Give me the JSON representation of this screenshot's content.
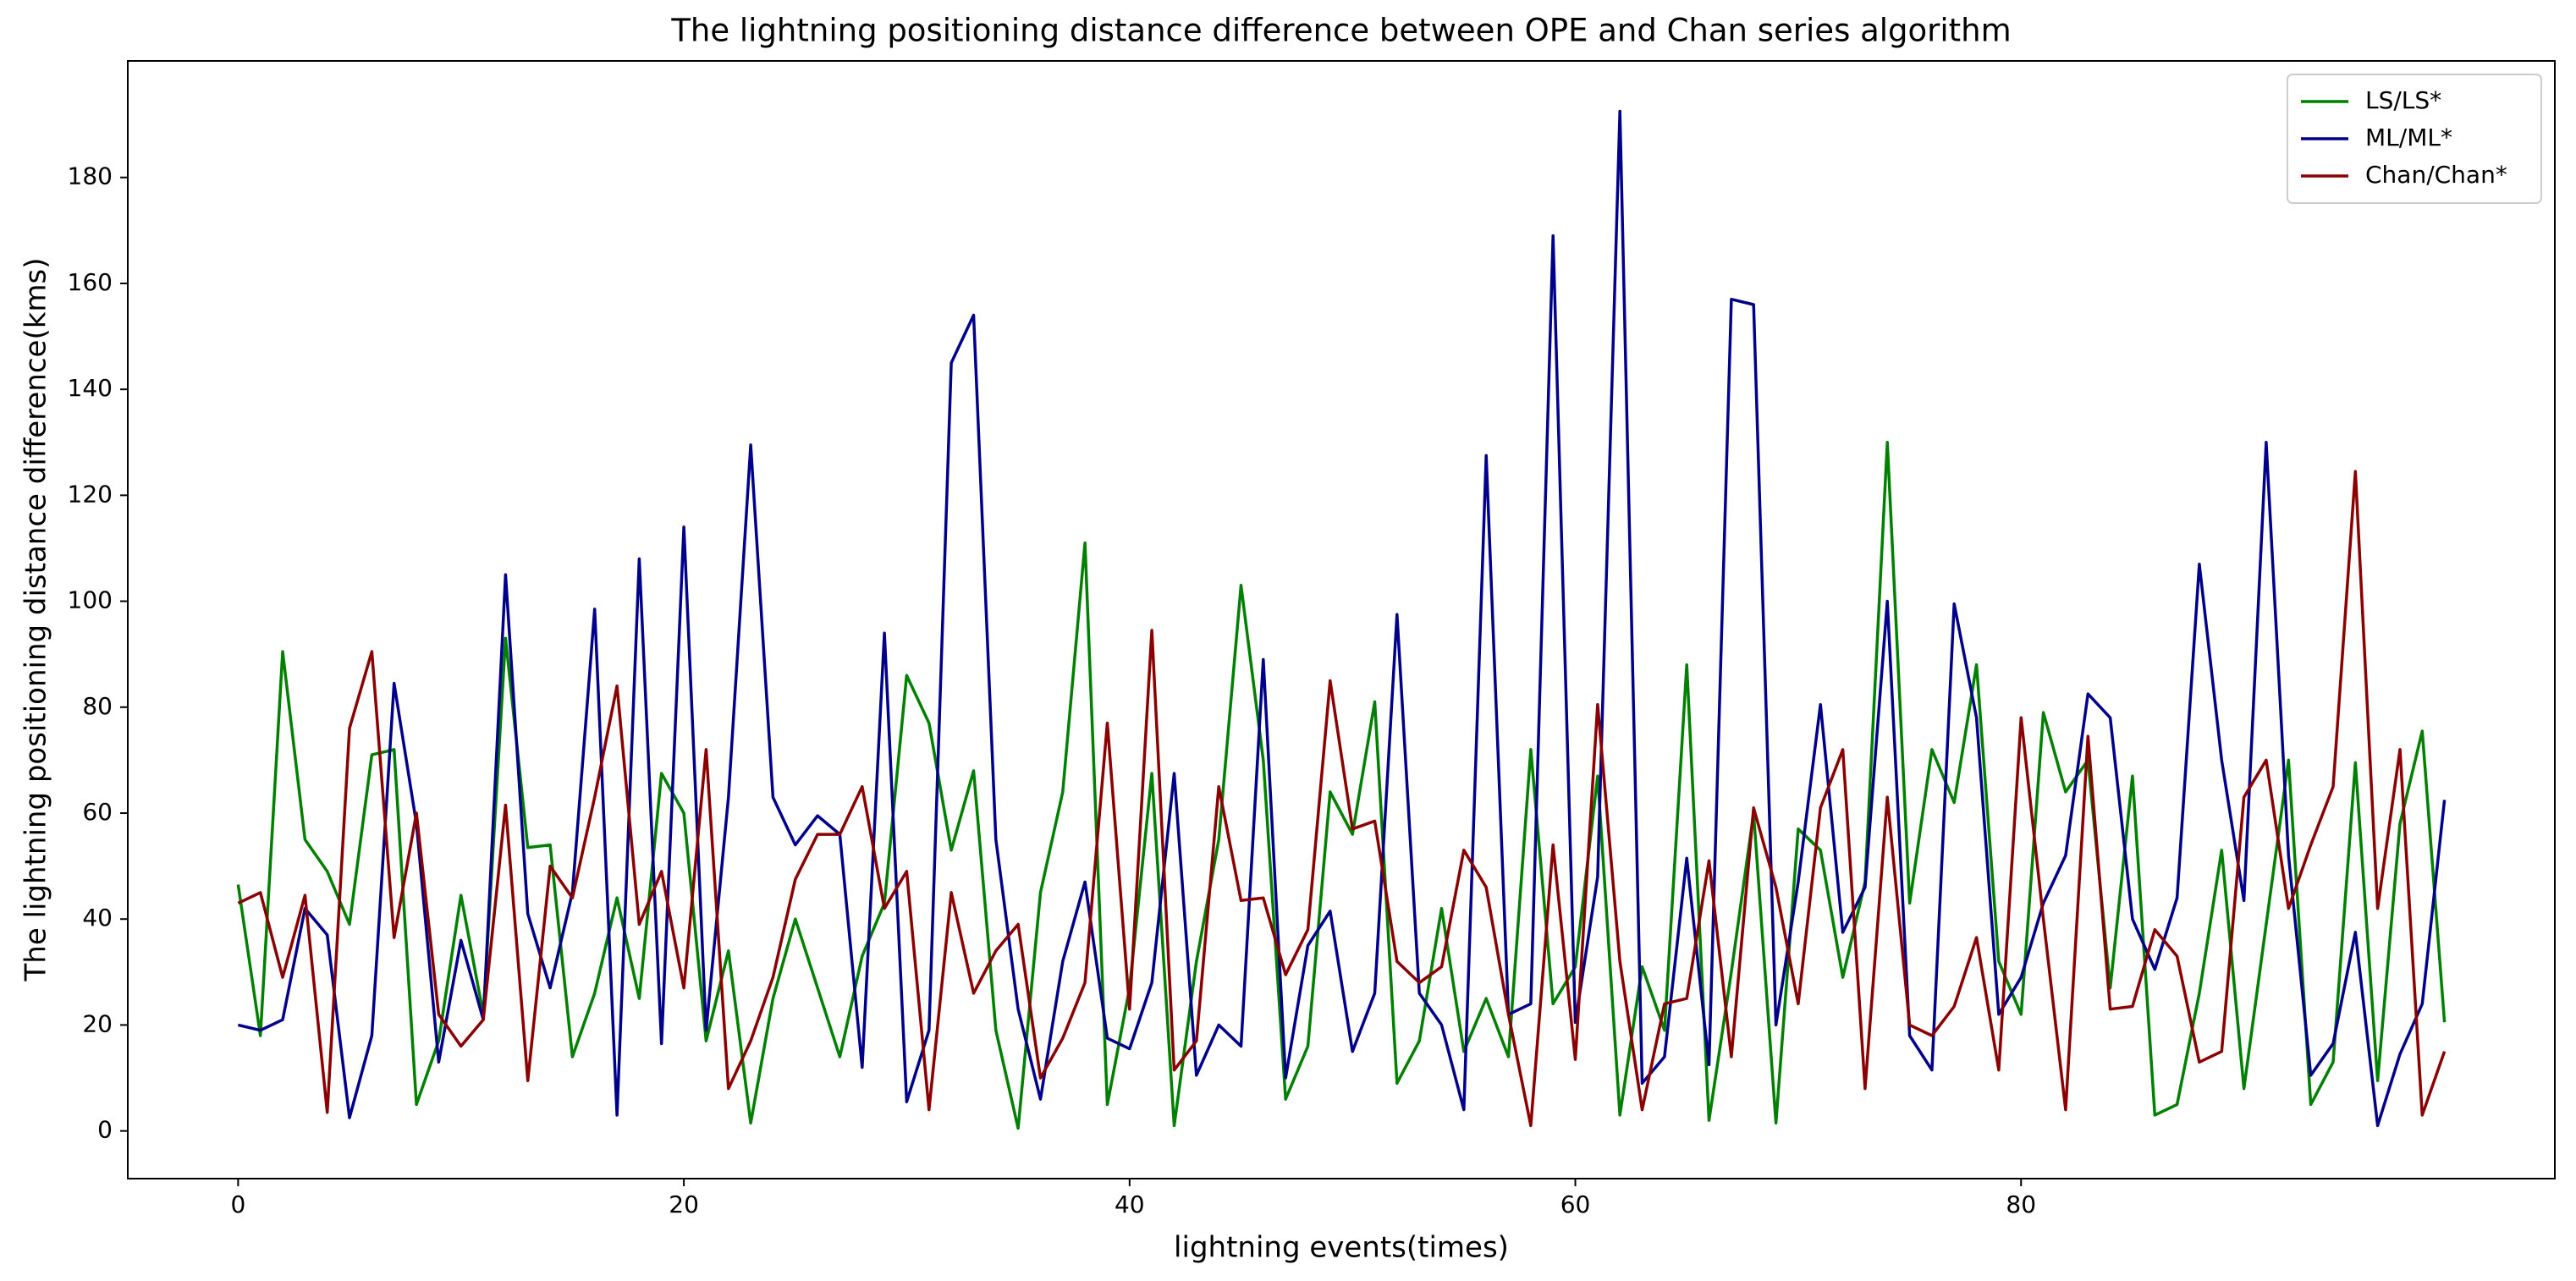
{
  "chart_data": {
    "type": "line",
    "title": "The lightning positioning distance difference between OPE and Chan series algorithm",
    "xlabel": "lightning events(times)",
    "ylabel": "The lightning positioning distance difference(kms)",
    "x": [
      0,
      1,
      2,
      3,
      4,
      5,
      6,
      7,
      8,
      9,
      10,
      11,
      12,
      13,
      14,
      15,
      16,
      17,
      18,
      19,
      20,
      21,
      22,
      23,
      24,
      25,
      26,
      27,
      28,
      29,
      30,
      31,
      32,
      33,
      34,
      35,
      36,
      37,
      38,
      39,
      40,
      41,
      42,
      43,
      44,
      45,
      46,
      47,
      48,
      49,
      50,
      51,
      52,
      53,
      54,
      55,
      56,
      57,
      58,
      59,
      60,
      61,
      62,
      63,
      64,
      65,
      66,
      67,
      68,
      69,
      70,
      71,
      72,
      73,
      74,
      75,
      76,
      77,
      78,
      79,
      80,
      81,
      82,
      83,
      84,
      85,
      86,
      87,
      88,
      89,
      90,
      91,
      92,
      93,
      94,
      95,
      96,
      97,
      98,
      99
    ],
    "xlim": [
      -4.95,
      103.95
    ],
    "xticks": [
      0,
      20,
      40,
      60,
      80
    ],
    "ylim": [
      -9,
      202
    ],
    "yticks": [
      0,
      20,
      40,
      60,
      80,
      100,
      120,
      140,
      160,
      180
    ],
    "legend": "upper right",
    "series": [
      {
        "name": "LS/LS*",
        "color": "#008000",
        "values": [
          46.5,
          18,
          90.5,
          55,
          49,
          39,
          71,
          72,
          5,
          17,
          44.5,
          22,
          93,
          53.5,
          54,
          14,
          26,
          44,
          25,
          67.5,
          60,
          17,
          34,
          1.5,
          25,
          40,
          27,
          14,
          33,
          43,
          86,
          77,
          53,
          68,
          19,
          0.5,
          45,
          64,
          111,
          5,
          27,
          67.5,
          1,
          32,
          55,
          103,
          70,
          6,
          16,
          64,
          56,
          81,
          9,
          17,
          42,
          15,
          25,
          14,
          72,
          24,
          31,
          67,
          3,
          31,
          19,
          88,
          2,
          30,
          60,
          1.5,
          57,
          53,
          29,
          47,
          130,
          43,
          72,
          62,
          88,
          32,
          22,
          79,
          64,
          70,
          27,
          67,
          3,
          5,
          26,
          53,
          8,
          39,
          70,
          5,
          13,
          69.5,
          9.5,
          58,
          75.5,
          20.5
        ]
      },
      {
        "name": "ML/ML*",
        "color": "#00008b",
        "values": [
          20,
          19,
          21,
          42,
          37,
          2.5,
          18,
          84.5,
          58,
          13,
          36,
          21,
          105,
          41,
          27,
          45,
          98.5,
          3,
          108,
          16.5,
          114,
          19,
          63,
          129.5,
          63,
          54,
          59.5,
          56,
          12,
          94,
          5.5,
          19,
          145,
          154,
          55,
          23,
          6,
          32,
          47,
          17.5,
          15.5,
          28,
          67.5,
          10.5,
          20,
          16,
          89,
          10,
          35,
          41.5,
          15,
          26,
          97.5,
          26,
          20,
          4,
          127.5,
          22,
          24,
          169,
          20.5,
          48,
          192.5,
          9,
          14,
          51.5,
          12.5,
          157,
          156,
          20,
          47,
          80.5,
          37.5,
          46,
          100,
          18,
          11.5,
          99.5,
          78,
          22,
          29,
          43,
          52,
          82.5,
          78,
          40,
          30.5,
          44,
          107,
          70,
          43.5,
          130,
          52,
          10.5,
          16.5,
          37.5,
          1,
          14.5,
          24,
          62.5
        ]
      },
      {
        "name": "Chan/Chan*",
        "color": "#8b0000",
        "values": [
          43,
          45,
          29,
          44.5,
          3.5,
          76,
          90.5,
          36.5,
          60,
          22,
          16,
          21,
          61.5,
          9.5,
          50,
          44,
          63,
          84,
          39,
          49,
          27,
          72,
          8,
          17,
          29,
          47.5,
          56,
          56,
          65,
          42,
          49,
          4,
          45,
          26,
          34,
          39,
          10,
          17.5,
          28,
          77,
          23,
          94.5,
          11.5,
          17,
          65,
          43.5,
          44,
          29.5,
          38,
          85,
          57,
          58.5,
          32,
          28,
          31,
          53,
          46,
          22,
          1,
          54,
          13.5,
          80.5,
          32,
          4,
          24,
          25,
          51,
          14,
          61,
          46,
          24,
          61,
          72,
          8,
          63,
          20,
          18,
          23.5,
          36.5,
          11.5,
          78,
          40,
          4,
          74.5,
          23,
          23.5,
          38,
          33,
          13,
          15,
          63,
          70,
          42,
          54,
          65,
          124.5,
          42,
          72,
          3,
          15
        ]
      }
    ]
  }
}
